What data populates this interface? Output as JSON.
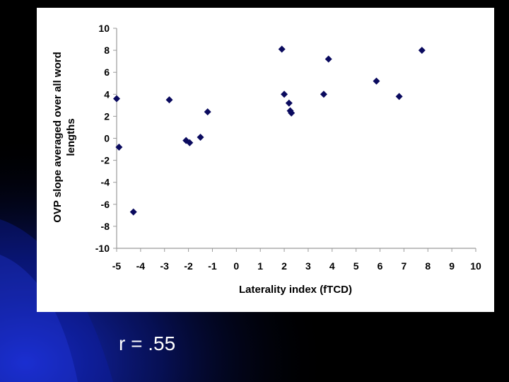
{
  "slide": {
    "caption": "r = .55"
  },
  "colors": {
    "marker": "#0a0a5e",
    "axis": "#9a9a9a",
    "text": "#000000",
    "panel": "#ffffff"
  },
  "chart_data": {
    "type": "scatter",
    "title": "",
    "xlabel": "Laterality index (fTCD)",
    "ylabel_lines": [
      "OVP slope averaged over all word",
      "lengths"
    ],
    "xlim": [
      -5,
      10
    ],
    "ylim": [
      -10,
      10
    ],
    "xticks": [
      -5,
      -4,
      -3,
      -2,
      -1,
      0,
      1,
      2,
      3,
      4,
      5,
      6,
      7,
      8,
      9,
      10
    ],
    "yticks": [
      10,
      8,
      6,
      4,
      2,
      0,
      -2,
      -4,
      -6,
      -8,
      -10
    ],
    "grid": false,
    "legend": "none",
    "series": [
      {
        "marker": "diamond",
        "points": [
          {
            "x": -5.0,
            "y": 3.6
          },
          {
            "x": -4.9,
            "y": -0.8
          },
          {
            "x": -4.3,
            "y": -6.7
          },
          {
            "x": -2.8,
            "y": 3.5
          },
          {
            "x": -2.1,
            "y": -0.2
          },
          {
            "x": -1.95,
            "y": -0.4
          },
          {
            "x": -1.5,
            "y": 0.1
          },
          {
            "x": -1.2,
            "y": 2.4
          },
          {
            "x": 1.9,
            "y": 8.1
          },
          {
            "x": 2.0,
            "y": 4.0
          },
          {
            "x": 2.2,
            "y": 3.2
          },
          {
            "x": 2.25,
            "y": 2.5
          },
          {
            "x": 2.3,
            "y": 2.3
          },
          {
            "x": 3.65,
            "y": 4.0
          },
          {
            "x": 3.85,
            "y": 7.2
          },
          {
            "x": 5.85,
            "y": 5.2
          },
          {
            "x": 6.8,
            "y": 3.8
          },
          {
            "x": 7.75,
            "y": 8.0
          }
        ]
      }
    ]
  }
}
